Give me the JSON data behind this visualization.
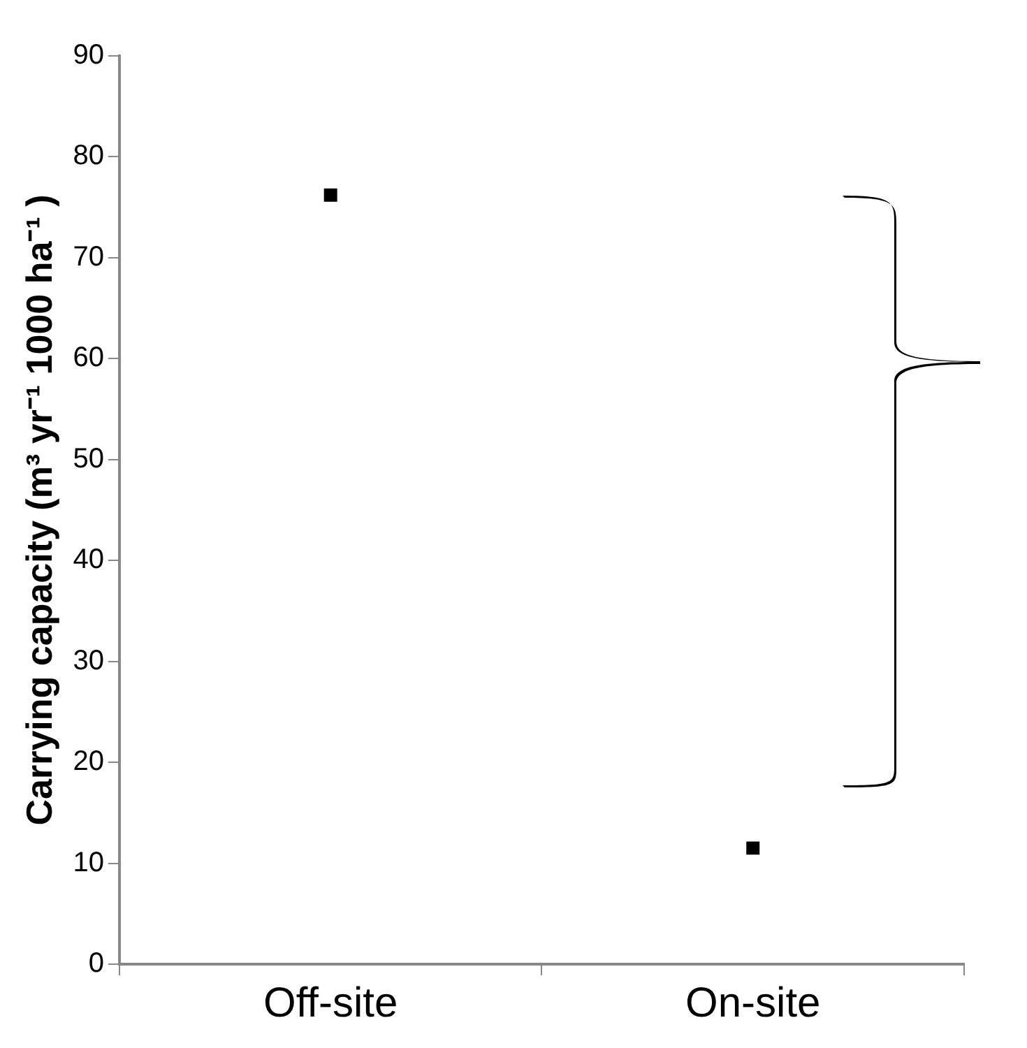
{
  "chart_data": {
    "type": "scatter",
    "ylabel": "Carrying capacity (m³ yr⁻¹ 1000 ha⁻¹ )",
    "categories": [
      "Off-site",
      "On-site"
    ],
    "series": [
      {
        "color": "#000000",
        "values": [
          76.2,
          11.5
        ]
      }
    ],
    "ylim": [
      0,
      90
    ],
    "yticks": [
      0,
      10,
      20,
      30,
      40,
      50,
      60,
      70,
      80,
      90
    ],
    "grid": false,
    "legend": false,
    "marker": "square"
  }
}
